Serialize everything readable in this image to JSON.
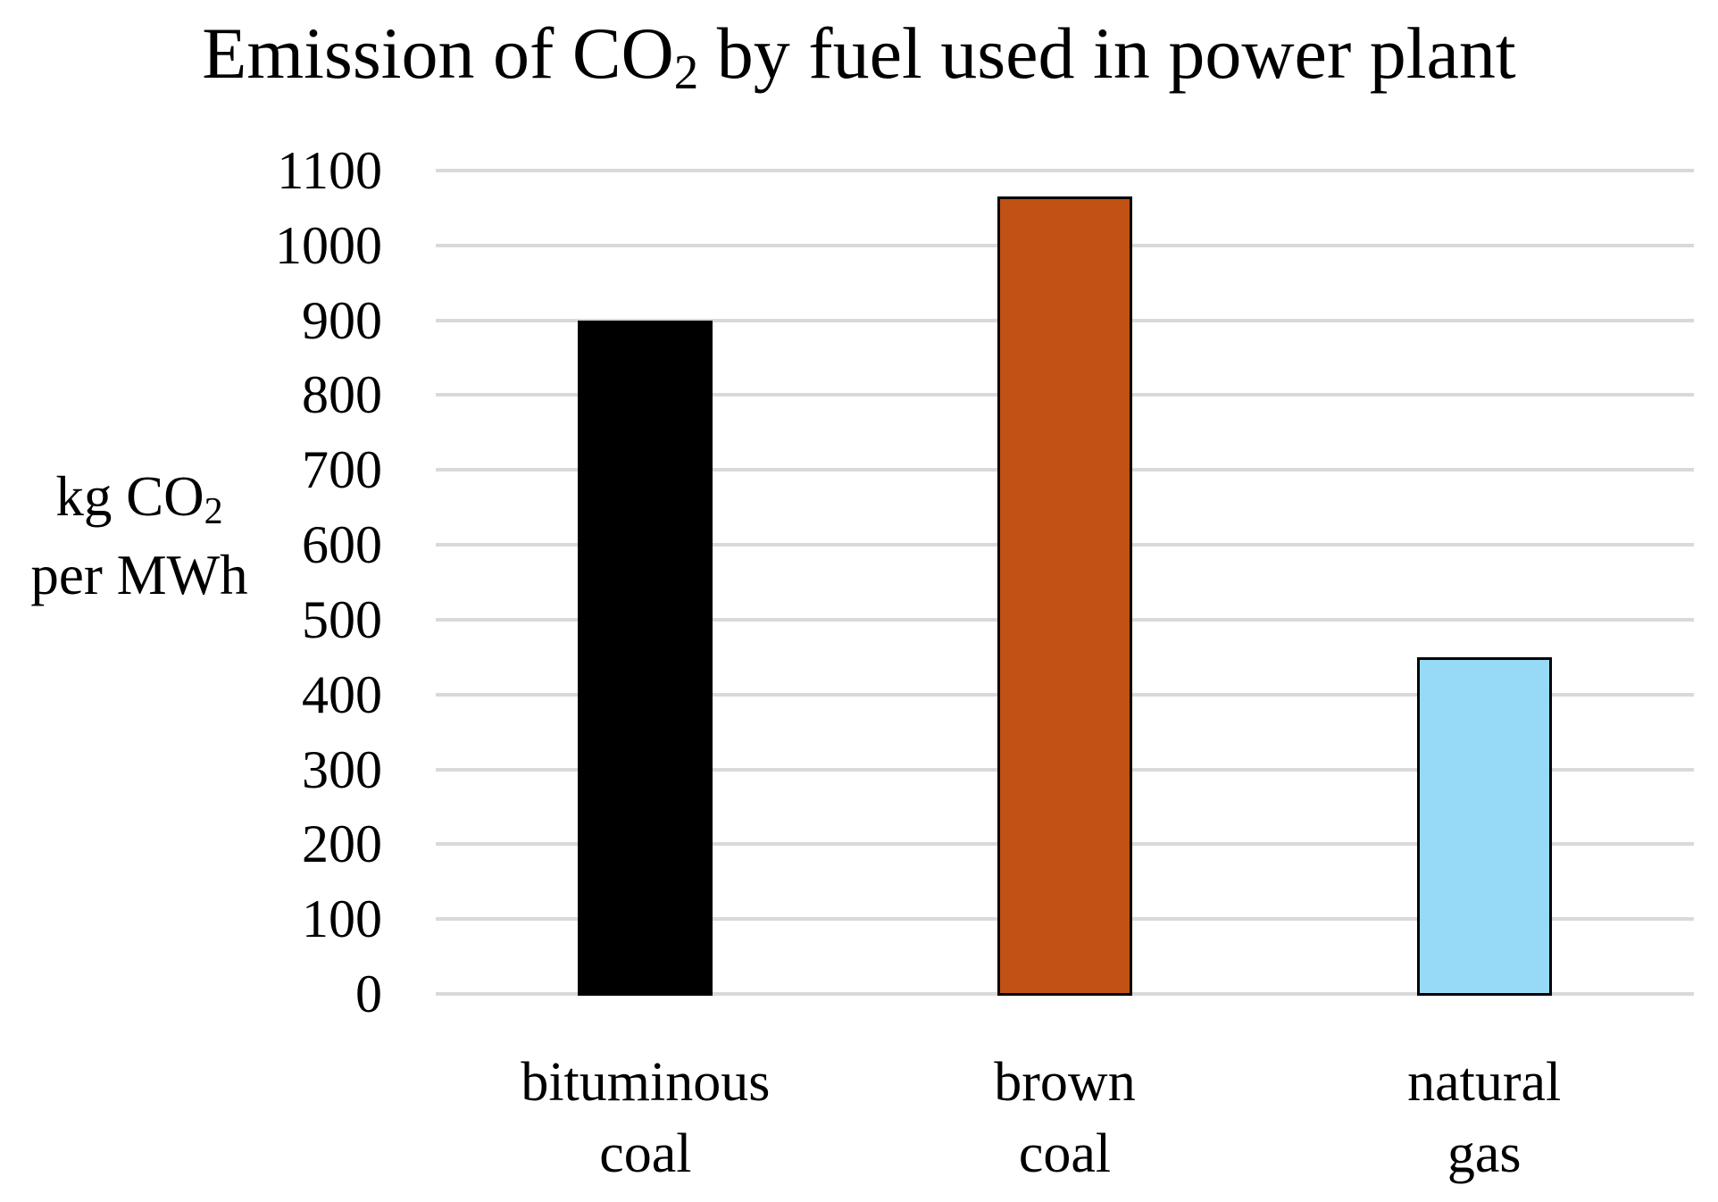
{
  "page": {
    "background_color": "#FFFFFF",
    "text_color": "#000000"
  },
  "chart_data": {
    "type": "bar",
    "title": {
      "prefix": "Emission of CO",
      "subscript": "2",
      "suffix": " by fuel used in power plant"
    },
    "ylabel": {
      "line1_prefix": "kg CO",
      "line1_subscript": "2",
      "line2": "per MWh"
    },
    "xlabel": "",
    "categories": [
      [
        "bituminous",
        "coal"
      ],
      [
        "brown",
        "coal"
      ],
      [
        "natural",
        "gas"
      ]
    ],
    "values": [
      900,
      1065,
      450
    ],
    "bar_colors": [
      "#000000",
      "#C25115",
      "#97DAF7"
    ],
    "bar_border_color": "#000000",
    "ylim": [
      0,
      1100
    ],
    "y_ticks": [
      0,
      100,
      200,
      300,
      400,
      500,
      600,
      700,
      800,
      900,
      1000,
      1100
    ],
    "grid": "horizontal",
    "gridline_color": "#D9D9D9",
    "legend": "none"
  }
}
